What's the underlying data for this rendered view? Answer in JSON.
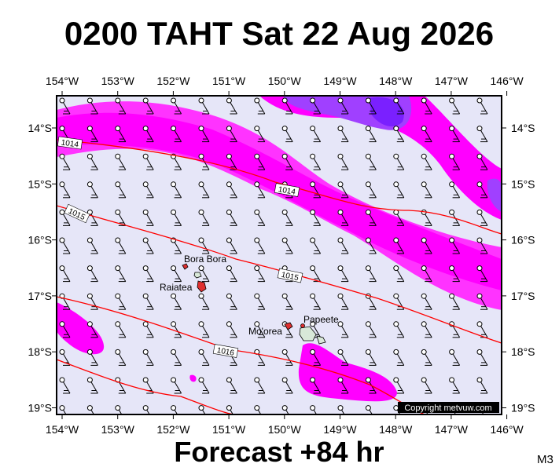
{
  "title": "0200 TAHT Sat 22 Aug 2026",
  "map": {
    "lon_labels": [
      "154°W",
      "153°W",
      "152°W",
      "151°W",
      "150°W",
      "149°W",
      "148°W",
      "147°W",
      "146°W"
    ],
    "lat_labels": [
      "14°S",
      "15°S",
      "16°S",
      "17°S",
      "18°S",
      "19°S"
    ],
    "places": [
      "Bora Bora",
      "Raiatea",
      "Mo'orea",
      "Papeete"
    ],
    "isobar_labels": [
      "1014",
      "1014",
      "1015",
      "1015",
      "1016"
    ],
    "copyright": "Copyright metvuw.com"
  },
  "footer": "Forecast +84 hr",
  "model": "M3"
}
